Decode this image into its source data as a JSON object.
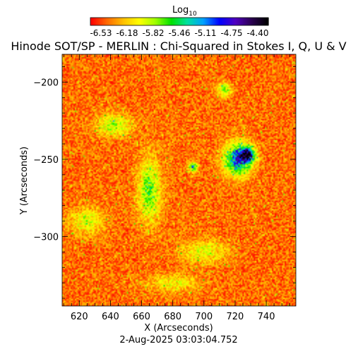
{
  "chart_data": {
    "type": "heatmap",
    "title": "Hinode SOT/SP - MERLIN : Chi-Squared in Stokes I, Q, U & V",
    "colorbar": {
      "label": "Log",
      "label_subscript": "10",
      "ticks": [
        "-6.53",
        "-6.18",
        "-5.82",
        "-5.46",
        "-5.11",
        "-4.75",
        "-4.40"
      ],
      "range": [
        -6.53,
        -4.4
      ],
      "colors": [
        "#ff0000",
        "#ff6a00",
        "#ffc000",
        "#ffff00",
        "#a0ff00",
        "#00e000",
        "#00e0a0",
        "#00a0ff",
        "#0000ff",
        "#5000c0",
        "#2a0050",
        "#000000"
      ]
    },
    "xlabel": "X (Arcseconds)",
    "ylabel": "Y (Arcseconds)",
    "xlim": [
      609,
      759
    ],
    "ylim": [
      -345,
      -182
    ],
    "xticks": [
      620,
      640,
      660,
      680,
      700,
      720,
      740
    ],
    "yticks": [
      -200,
      -250,
      -300
    ],
    "grid": false,
    "features": [
      {
        "x": 665,
        "y": -270,
        "sx": 5,
        "sy": 14,
        "value": -5.5
      },
      {
        "x": 722,
        "y": -250,
        "sx": 6,
        "sy": 7,
        "value": -4.8
      },
      {
        "x": 728,
        "y": -247,
        "sx": 3,
        "sy": 3,
        "value": -4.5
      },
      {
        "x": 693,
        "y": -255,
        "sx": 2,
        "sy": 2,
        "value": -5.1
      },
      {
        "x": 642,
        "y": -228,
        "sx": 8,
        "sy": 5,
        "value": -5.7
      },
      {
        "x": 713,
        "y": -205,
        "sx": 3,
        "sy": 3,
        "value": -5.5
      },
      {
        "x": 625,
        "y": -290,
        "sx": 8,
        "sy": 6,
        "value": -5.8
      },
      {
        "x": 700,
        "y": -310,
        "sx": 10,
        "sy": 5,
        "value": -5.8
      },
      {
        "x": 680,
        "y": -330,
        "sx": 12,
        "sy": 4,
        "value": -5.9
      }
    ]
  },
  "footer": {
    "timestamp": "2-Aug-2025 03:03:04.752"
  }
}
